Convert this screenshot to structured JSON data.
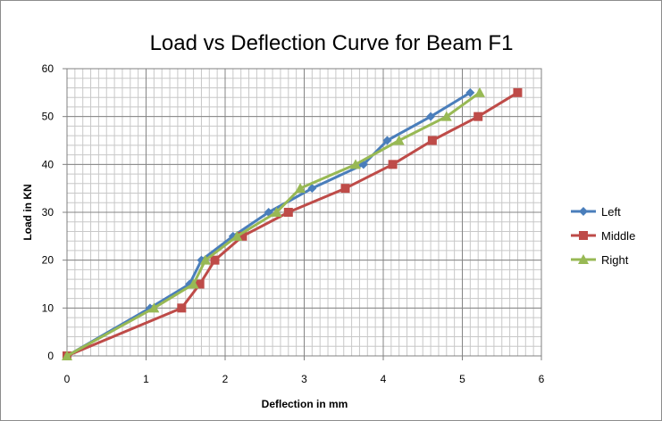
{
  "chart_data": {
    "type": "line",
    "title": "Load vs Deflection Curve for Beam F1",
    "xlabel": "Deflection in mm",
    "ylabel": "Load in KN",
    "xlim": [
      0,
      6
    ],
    "ylim": [
      0,
      60
    ],
    "x_ticks": [
      0,
      1,
      2,
      3,
      4,
      5,
      6
    ],
    "y_ticks": [
      0,
      10,
      20,
      30,
      40,
      50,
      60
    ],
    "grid": true,
    "legend_position": "right",
    "series": [
      {
        "name": "Left",
        "color": "#4a7ebb",
        "marker": "diamond",
        "points": [
          [
            0,
            0
          ],
          [
            1.05,
            10
          ],
          [
            1.55,
            15
          ],
          [
            1.7,
            20
          ],
          [
            2.1,
            25
          ],
          [
            2.55,
            30
          ],
          [
            3.1,
            35
          ],
          [
            3.75,
            40
          ],
          [
            4.05,
            45
          ],
          [
            4.6,
            50
          ],
          [
            5.1,
            55
          ]
        ]
      },
      {
        "name": "Middle",
        "color": "#be4b48",
        "marker": "square",
        "points": [
          [
            0,
            0
          ],
          [
            1.45,
            10
          ],
          [
            1.68,
            15
          ],
          [
            1.87,
            20
          ],
          [
            2.22,
            25
          ],
          [
            2.8,
            30
          ],
          [
            3.52,
            35
          ],
          [
            4.12,
            40
          ],
          [
            4.62,
            45
          ],
          [
            5.2,
            50
          ],
          [
            5.7,
            55
          ]
        ]
      },
      {
        "name": "Right",
        "color": "#98b954",
        "marker": "triangle",
        "points": [
          [
            0,
            0
          ],
          [
            1.1,
            10
          ],
          [
            1.6,
            15
          ],
          [
            1.75,
            20
          ],
          [
            2.15,
            25
          ],
          [
            2.65,
            30
          ],
          [
            2.95,
            35
          ],
          [
            3.65,
            40
          ],
          [
            4.2,
            45
          ],
          [
            4.8,
            50
          ],
          [
            5.22,
            55
          ]
        ]
      }
    ]
  }
}
